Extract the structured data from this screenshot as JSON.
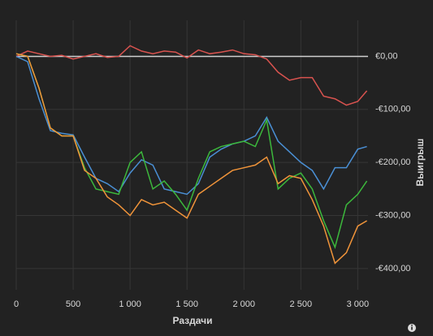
{
  "chart_data": {
    "type": "line",
    "x_label": "Раздачи",
    "y_label": "Выигрыш",
    "x": [
      0,
      100,
      200,
      300,
      400,
      500,
      600,
      700,
      800,
      900,
      1000,
      1100,
      1200,
      1300,
      1400,
      1500,
      1600,
      1700,
      1800,
      1900,
      2000,
      2100,
      2200,
      2300,
      2400,
      2500,
      2600,
      2700,
      2800,
      2900,
      3000,
      3080
    ],
    "series": [
      {
        "color": "#d9534f",
        "values": [
          0,
          10,
          5,
          0,
          2,
          -5,
          0,
          5,
          -2,
          0,
          20,
          10,
          5,
          10,
          8,
          -3,
          12,
          5,
          8,
          12,
          5,
          3,
          -5,
          -30,
          -45,
          -40,
          -40,
          -75,
          -80,
          -92,
          -85,
          -65
        ]
      },
      {
        "color": "#4a8fd4",
        "values": [
          0,
          -10,
          -80,
          -140,
          -145,
          -148,
          -190,
          -230,
          -240,
          -255,
          -220,
          -195,
          -205,
          -250,
          -255,
          -260,
          -240,
          -190,
          -175,
          -165,
          -160,
          -150,
          -115,
          -160,
          -180,
          -200,
          -215,
          -250,
          -210,
          -210,
          -175,
          -170
        ]
      },
      {
        "color": "#3cb83c",
        "values": [
          5,
          0,
          -60,
          -135,
          -150,
          -150,
          -210,
          -250,
          -255,
          -260,
          -200,
          -180,
          -250,
          -235,
          -260,
          -290,
          -230,
          -180,
          -170,
          -165,
          -160,
          -170,
          -120,
          -250,
          -230,
          -220,
          -250,
          -310,
          -360,
          -280,
          -260,
          -235
        ]
      },
      {
        "color": "#f0943a",
        "values": [
          5,
          0,
          -60,
          -135,
          -150,
          -150,
          -215,
          -230,
          -265,
          -280,
          -300,
          -270,
          -280,
          -275,
          -290,
          -305,
          -260,
          -245,
          -230,
          -215,
          -210,
          -205,
          -190,
          -240,
          -225,
          -230,
          -270,
          -320,
          -390,
          -370,
          -320,
          -310
        ]
      }
    ],
    "xlim": [
      0,
      3090
    ],
    "ylim": [
      -440,
      68
    ],
    "xticks": [
      0,
      500,
      {
        "value": 1000,
        "label": "1 000"
      },
      {
        "value": 1500,
        "label": "1 500"
      },
      {
        "value": 2000,
        "label": "2 000"
      },
      {
        "value": 2500,
        "label": "2 500"
      },
      {
        "value": 3000,
        "label": "3 000"
      }
    ],
    "yticks": [
      {
        "value": 0,
        "label": "€0,00"
      },
      {
        "value": -100,
        "label": "-€100,00"
      },
      {
        "value": -200,
        "label": "-€200,00"
      },
      {
        "value": -300,
        "label": "-€300,00"
      },
      {
        "value": -400,
        "label": "-€400,00"
      }
    ],
    "grid": true
  }
}
